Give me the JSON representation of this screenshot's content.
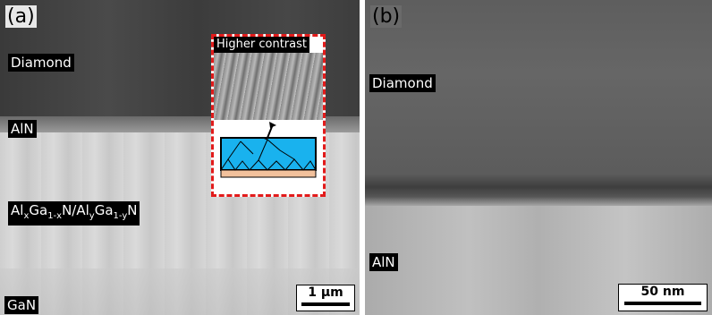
{
  "panels": [
    {
      "tag": "(a)",
      "labels": {
        "top": "Diamond",
        "interface": "AlN",
        "layers": [
          {
            "text": "Al"
          },
          {
            "text": "x",
            "sub": true
          },
          {
            "text": "Ga"
          },
          {
            "text": "1-x",
            "sub": true
          },
          {
            "text": "N/Al"
          },
          {
            "text": "y",
            "sub": true
          },
          {
            "text": "Ga"
          },
          {
            "text": "1-y",
            "sub": true
          },
          {
            "text": "N"
          }
        ],
        "bottom": "GaN"
      },
      "inset": {
        "title": "Higher contrast"
      },
      "scale_bar": "1 µm"
    },
    {
      "tag": "(b)",
      "labels": {
        "top": "Diamond",
        "interface": "AlN"
      },
      "scale_bar": "50 nm"
    }
  ]
}
